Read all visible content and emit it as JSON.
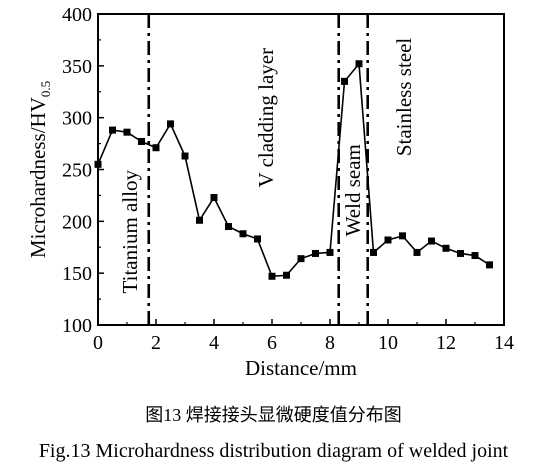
{
  "chart_data": {
    "type": "line",
    "xlabel": "Distance/mm",
    "ylabel": "Microhardness/HV",
    "ylabel_sub": "0.5",
    "xlim": [
      0,
      14
    ],
    "ylim": [
      100,
      400
    ],
    "xticks": [
      0,
      2,
      4,
      6,
      8,
      10,
      12,
      14
    ],
    "yticks": [
      100,
      150,
      200,
      250,
      300,
      350,
      400
    ],
    "grid": false,
    "marker": "square",
    "series": [
      {
        "x": [
          0,
          0.5,
          1,
          1.5,
          2,
          2.5,
          3,
          3.5,
          4,
          4.5,
          5,
          5.5,
          6,
          6.5,
          7,
          7.5,
          8,
          8.5,
          9,
          9.5,
          10,
          10.5,
          11,
          11.5,
          12,
          12.5,
          13,
          13.5
        ],
        "y": [
          255,
          288,
          286,
          277,
          271,
          294,
          263,
          201,
          223,
          195,
          188,
          183,
          147,
          148,
          164,
          169,
          170,
          335,
          352,
          170,
          182,
          186,
          170,
          181,
          174,
          169,
          167,
          158
        ]
      }
    ],
    "boundaries": [
      1.75,
      8.3,
      9.3
    ],
    "annotations": [
      {
        "text": "Titanium alloy",
        "x": 1.1,
        "y": 190
      },
      {
        "text": "V cladding layer",
        "x": 5.8,
        "y": 300
      },
      {
        "text": "Weld seam",
        "x": 8.8,
        "y": 230
      },
      {
        "text": "Stainless steel",
        "x": 10.55,
        "y": 320
      }
    ]
  },
  "caption_cn": "图13  焊接接头显微硬度值分布图",
  "caption_en": "Fig.13  Microhardness distribution diagram of welded joint"
}
